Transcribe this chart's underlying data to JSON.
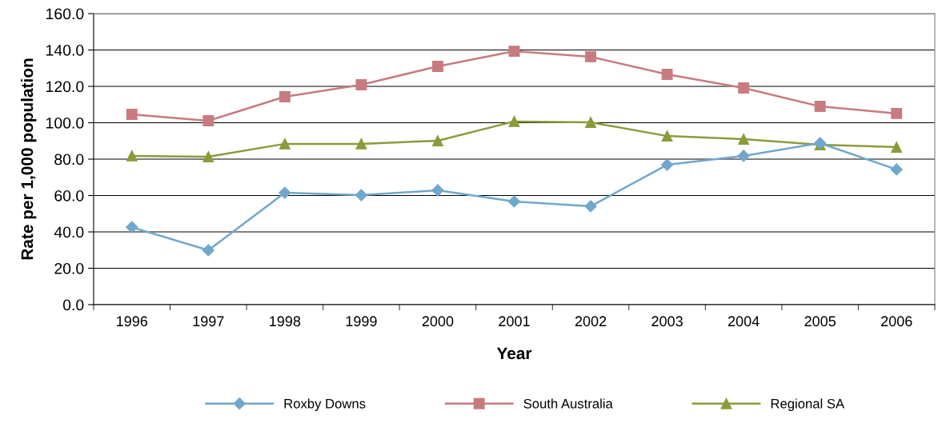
{
  "chart_data": {
    "type": "line",
    "xlabel": "Year",
    "ylabel": "Rate per 1,000 population",
    "categories": [
      "1996",
      "1997",
      "1998",
      "1999",
      "2000",
      "2001",
      "2002",
      "2003",
      "2004",
      "2005",
      "2006"
    ],
    "series": [
      {
        "name": "Roxby Downs",
        "color": "#6fa8cc",
        "marker": "diamond",
        "values": [
          42.6,
          29.9,
          61.5,
          60.2,
          62.9,
          56.7,
          54.1,
          76.9,
          81.8,
          88.8,
          74.3
        ]
      },
      {
        "name": "South Australia",
        "color": "#c87b7e",
        "marker": "square",
        "values": [
          104.6,
          101.1,
          114.3,
          120.9,
          131.0,
          139.3,
          136.3,
          126.6,
          119.1,
          109.0,
          105.1
        ]
      },
      {
        "name": "Regional SA",
        "color": "#8c9b3a",
        "marker": "triangle",
        "values": [
          81.8,
          81.3,
          88.4,
          88.4,
          90.1,
          100.7,
          100.2,
          92.7,
          91.0,
          87.9,
          86.6
        ]
      }
    ],
    "ylim": [
      0,
      160
    ],
    "yticks": [
      {
        "value": 0,
        "label": "0.0"
      },
      {
        "value": 20,
        "label": "20.0"
      },
      {
        "value": 40,
        "label": "40.0"
      },
      {
        "value": 60,
        "label": "60.0"
      },
      {
        "value": 80,
        "label": "80.0"
      },
      {
        "value": 100,
        "label": "100.0"
      },
      {
        "value": 120,
        "label": "120.0"
      },
      {
        "value": 140,
        "label": "140.0"
      },
      {
        "value": 160,
        "label": "160.0"
      }
    ],
    "grid": "y",
    "legend": "bottom",
    "line_style": "solid"
  }
}
